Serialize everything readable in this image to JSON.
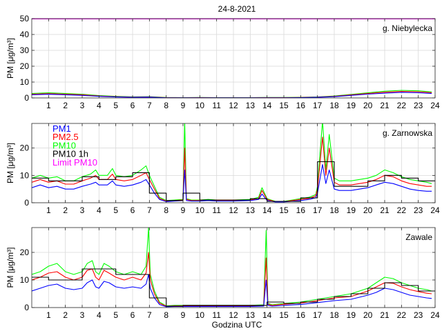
{
  "figure_title": "24-8-2021",
  "x_axis_label": "Godzina UTC",
  "colors": {
    "PM1": "#0000ff",
    "PM2.5": "#ff0000",
    "PM10": "#00ff00",
    "PM10 1h": "#000000",
    "Limit PM10": "#ff00ff",
    "grid": "#d9d9d9",
    "axis": "#262626"
  },
  "chart_data": [
    {
      "type": "line",
      "station": "g. Niebylecka",
      "ylabel": "PM [μg/m³]",
      "xlim": [
        0,
        24
      ],
      "ylim": [
        0,
        50
      ],
      "yticks": [
        0,
        10,
        20,
        30,
        40,
        50
      ],
      "xticks": [
        1,
        2,
        3,
        4,
        5,
        6,
        7,
        8,
        9,
        10,
        11,
        12,
        13,
        14,
        15,
        16,
        17,
        18,
        19,
        20,
        21,
        22,
        23,
        24
      ],
      "grid": true,
      "legend": null,
      "series": [
        {
          "name": "Limit PM10",
          "x": [
            0,
            24
          ],
          "values": [
            50,
            50
          ]
        },
        {
          "name": "PM10",
          "x": [
            0,
            1,
            2,
            3,
            4,
            5,
            6,
            7,
            8,
            9,
            10,
            11,
            12,
            13,
            14,
            15,
            16,
            17,
            18,
            19,
            20,
            21,
            22,
            23,
            23.8
          ],
          "values": [
            2.8,
            3.2,
            2.8,
            2.3,
            1.5,
            1.0,
            0.7,
            0.8,
            0.3,
            0.2,
            0.3,
            0.2,
            0.2,
            0.2,
            0.3,
            0.3,
            0.4,
            0.6,
            1.2,
            2.2,
            3.2,
            4.2,
            4.8,
            4.5,
            3.8
          ]
        },
        {
          "name": "PM2.5",
          "x": [
            0,
            1,
            2,
            3,
            4,
            5,
            6,
            7,
            8,
            9,
            10,
            11,
            12,
            13,
            14,
            15,
            16,
            17,
            18,
            19,
            20,
            21,
            22,
            23,
            23.8
          ],
          "values": [
            2.4,
            2.7,
            2.4,
            2.0,
            1.2,
            0.8,
            0.5,
            0.6,
            0.2,
            0.1,
            0.2,
            0.1,
            0.1,
            0.1,
            0.2,
            0.2,
            0.3,
            0.5,
            1.0,
            1.9,
            2.8,
            3.6,
            4.1,
            3.9,
            3.3
          ]
        },
        {
          "name": "PM1",
          "x": [
            0,
            1,
            2,
            3,
            4,
            5,
            6,
            7,
            8,
            9,
            10,
            11,
            12,
            13,
            14,
            15,
            16,
            17,
            18,
            19,
            20,
            21,
            22,
            23,
            23.8
          ],
          "values": [
            2.0,
            2.3,
            2.0,
            1.6,
            1.0,
            0.6,
            0.4,
            0.5,
            0.1,
            0.1,
            0.1,
            0.1,
            0.1,
            0.1,
            0.1,
            0.1,
            0.2,
            0.4,
            0.8,
            1.6,
            2.4,
            3.0,
            3.5,
            3.3,
            2.8
          ]
        }
      ]
    },
    {
      "type": "line",
      "station": "g. Zarnowska",
      "ylabel": "PM [μg/m³]",
      "xlim": [
        0,
        24
      ],
      "ylim": [
        0,
        29
      ],
      "yticks": [
        0,
        10,
        20
      ],
      "xticks": [
        1,
        2,
        3,
        4,
        5,
        6,
        7,
        8,
        9,
        10,
        11,
        12,
        13,
        14,
        15,
        16,
        17,
        18,
        19,
        20,
        21,
        22,
        23,
        24
      ],
      "grid": true,
      "legend": {
        "position": "top-left",
        "entries": [
          "PM1",
          "PM2.5",
          "PM10",
          "PM10 1h",
          "Limit PM10"
        ]
      },
      "series": [
        {
          "name": "PM10",
          "x": [
            0,
            0.5,
            1,
            1.5,
            2,
            2.5,
            3,
            3.5,
            3.8,
            4,
            4.5,
            4.8,
            5,
            5.5,
            6,
            6.5,
            6.8,
            7,
            7.3,
            7.6,
            8,
            8.5,
            9,
            9.1,
            9.2,
            9.5,
            10,
            10.5,
            11,
            12,
            13,
            13.5,
            13.7,
            14,
            14.5,
            15,
            16,
            16.5,
            16.9,
            17,
            17.3,
            17.5,
            17.7,
            18,
            18.3,
            18.6,
            19,
            19.5,
            20,
            20.5,
            21,
            21.5,
            22,
            22.5,
            23,
            23.5,
            23.8
          ],
          "values": [
            9,
            10,
            9,
            9.5,
            8,
            8,
            9.5,
            10.5,
            12,
            10,
            10,
            12.5,
            10,
            9.5,
            10,
            12,
            13.5,
            10,
            6,
            2,
            0.8,
            1,
            1.2,
            30,
            1.5,
            1,
            1,
            1.2,
            1,
            1,
            1.2,
            2,
            5.5,
            1.5,
            0.5,
            0.5,
            1.5,
            2,
            3,
            6,
            30,
            12,
            25,
            9,
            8,
            8,
            8,
            8.5,
            9,
            10,
            12,
            11,
            9.5,
            8.5,
            8,
            7.5,
            7
          ]
        },
        {
          "name": "PM2.5",
          "x": [
            0,
            0.5,
            1,
            1.5,
            2,
            2.5,
            3,
            3.5,
            3.8,
            4,
            4.5,
            4.8,
            5,
            5.5,
            6,
            6.5,
            6.8,
            7,
            7.3,
            7.6,
            8,
            8.5,
            9,
            9.1,
            9.2,
            9.5,
            10,
            10.5,
            11,
            12,
            13,
            13.5,
            13.7,
            14,
            14.5,
            15,
            16,
            16.5,
            16.9,
            17,
            17.3,
            17.5,
            17.7,
            18,
            18.3,
            18.6,
            19,
            19.5,
            20,
            20.5,
            21,
            21.5,
            22,
            22.5,
            23,
            23.5,
            23.8
          ],
          "values": [
            7.5,
            8.5,
            7.5,
            8,
            6.8,
            6.8,
            8,
            9,
            10,
            8.5,
            8.5,
            10.5,
            8.5,
            8,
            8.5,
            10,
            11,
            8.5,
            5,
            1.6,
            0.6,
            0.8,
            1,
            20,
            1.2,
            0.8,
            0.8,
            1,
            0.8,
            0.8,
            1,
            1.6,
            4.5,
            1.2,
            0.4,
            0.4,
            1.2,
            1.6,
            2.5,
            5,
            24,
            10,
            20,
            7.5,
            6.5,
            6.5,
            6.5,
            7,
            7.5,
            8.5,
            10,
            9.5,
            8,
            7,
            6.5,
            6,
            6
          ]
        },
        {
          "name": "PM1",
          "x": [
            0,
            0.5,
            1,
            1.5,
            2,
            2.5,
            3,
            3.5,
            3.8,
            4,
            4.5,
            4.8,
            5,
            5.5,
            6,
            6.5,
            6.8,
            7,
            7.3,
            7.6,
            8,
            8.5,
            9,
            9.1,
            9.2,
            9.5,
            10,
            10.5,
            11,
            12,
            13,
            13.5,
            13.7,
            14,
            14.5,
            15,
            16,
            16.5,
            16.9,
            17,
            17.3,
            17.5,
            17.7,
            18,
            18.3,
            18.6,
            19,
            19.5,
            20,
            20.5,
            21,
            21.5,
            22,
            22.5,
            23,
            23.5,
            23.8
          ],
          "values": [
            5.5,
            6.5,
            5.5,
            6,
            5,
            5,
            6,
            6.8,
            7.5,
            6.5,
            6.5,
            8,
            6.5,
            6,
            6.5,
            7.5,
            8.5,
            6.5,
            3.5,
            1.2,
            0.4,
            0.6,
            0.8,
            12,
            0.8,
            0.6,
            0.6,
            0.8,
            0.6,
            0.6,
            0.8,
            1.2,
            3.2,
            0.8,
            0.3,
            0.3,
            0.8,
            1.2,
            1.8,
            3.5,
            14,
            7,
            12,
            5,
            4.5,
            4.5,
            4.5,
            5,
            5.5,
            6.5,
            7.5,
            7,
            6,
            5,
            4.5,
            4.2,
            4.2
          ]
        },
        {
          "name": "PM10 1h",
          "x": [
            0,
            1,
            2,
            3,
            4,
            5,
            6,
            7,
            8,
            9,
            10,
            11,
            12,
            13,
            14,
            15,
            16,
            17,
            18,
            19,
            20,
            21,
            22,
            23,
            24
          ],
          "values": [
            9,
            8,
            8,
            9.5,
            8.5,
            9.5,
            11,
            3.5,
            0.8,
            3.5,
            1,
            1,
            1,
            1.5,
            0.5,
            0.5,
            1.8,
            15,
            6,
            6,
            8,
            10,
            9,
            8,
            8
          ]
        }
      ]
    },
    {
      "type": "line",
      "station": "Zawale",
      "ylabel": "PM [μg/m³]",
      "xlim": [
        0,
        24
      ],
      "ylim": [
        0,
        29
      ],
      "yticks": [
        0,
        10,
        20
      ],
      "xticks": [
        1,
        2,
        3,
        4,
        5,
        6,
        7,
        8,
        9,
        10,
        11,
        12,
        13,
        14,
        15,
        16,
        17,
        18,
        19,
        20,
        21,
        22,
        23,
        24
      ],
      "grid": true,
      "legend": null,
      "series": [
        {
          "name": "PM10",
          "x": [
            0,
            0.5,
            1,
            1.5,
            2,
            2.5,
            3,
            3.3,
            3.6,
            3.8,
            4,
            4.3,
            4.6,
            5,
            5.5,
            6,
            6.5,
            6.8,
            6.95,
            7.05,
            7.3,
            7.6,
            8,
            8.5,
            9,
            10,
            11,
            12,
            13,
            13.8,
            13.95,
            14.05,
            14.3,
            15,
            16,
            17,
            18,
            19,
            20,
            20.5,
            21,
            21.5,
            22,
            22.5,
            23,
            23.5,
            23.8
          ],
          "values": [
            12,
            13,
            15,
            16,
            13,
            12,
            13,
            16,
            17,
            13,
            12,
            16,
            15,
            13,
            12,
            13,
            12,
            15,
            29,
            12,
            6,
            2,
            0.6,
            0.8,
            0.8,
            0.8,
            0.8,
            0.8,
            0.8,
            1,
            28,
            1.5,
            1,
            1.5,
            2,
            3,
            4,
            5,
            7,
            9,
            11,
            10.5,
            9,
            8,
            7,
            6.5,
            6
          ]
        },
        {
          "name": "PM2.5",
          "x": [
            0,
            0.5,
            1,
            1.5,
            2,
            2.5,
            3,
            3.3,
            3.6,
            3.8,
            4,
            4.3,
            4.6,
            5,
            5.5,
            6,
            6.5,
            6.8,
            6.95,
            7.05,
            7.3,
            7.6,
            8,
            8.5,
            9,
            10,
            11,
            12,
            13,
            13.8,
            13.95,
            14.05,
            14.3,
            15,
            16,
            17,
            18,
            19,
            20,
            20.5,
            21,
            21.5,
            22,
            22.5,
            23,
            23.5,
            23.8
          ],
          "values": [
            10,
            11,
            12.5,
            13,
            11,
            10,
            11,
            13.5,
            14,
            11,
            10,
            13.5,
            12.5,
            11,
            10,
            11,
            10,
            12.5,
            20,
            10,
            5,
            1.6,
            0.5,
            0.6,
            0.6,
            0.6,
            0.6,
            0.6,
            0.6,
            0.8,
            18,
            1.2,
            0.8,
            1.2,
            1.6,
            2.5,
            3.5,
            4,
            6,
            7.5,
            9,
            8.8,
            7.5,
            6.5,
            5.8,
            5.2,
            5
          ]
        },
        {
          "name": "PM1",
          "x": [
            0,
            0.5,
            1,
            1.5,
            2,
            2.5,
            3,
            3.3,
            3.6,
            3.8,
            4,
            4.3,
            4.6,
            5,
            5.5,
            6,
            6.5,
            6.8,
            6.95,
            7.05,
            7.3,
            7.6,
            8,
            8.5,
            9,
            10,
            11,
            12,
            13,
            13.8,
            13.95,
            14.05,
            14.3,
            15,
            16,
            17,
            18,
            19,
            20,
            20.5,
            21,
            21.5,
            22,
            22.5,
            23,
            23.5,
            23.8
          ],
          "values": [
            6,
            7,
            8,
            8.5,
            7,
            6.5,
            7,
            9,
            10,
            7.5,
            7,
            9.5,
            9,
            7.5,
            7,
            7.5,
            7,
            8.5,
            12,
            7,
            3.5,
            1.1,
            0.3,
            0.4,
            0.4,
            0.4,
            0.4,
            0.4,
            0.4,
            0.5,
            10,
            0.8,
            0.5,
            0.8,
            1.1,
            1.8,
            2.5,
            3,
            4.5,
            5.5,
            7,
            6.5,
            5.5,
            4.5,
            4,
            3.5,
            3.3
          ]
        },
        {
          "name": "PM10 1h",
          "x": [
            0,
            1,
            2,
            3,
            4,
            5,
            6,
            7,
            8,
            9,
            10,
            11,
            12,
            13,
            14,
            15,
            16,
            17,
            18,
            19,
            20,
            21,
            22,
            23,
            24
          ],
          "values": [
            11,
            10,
            10,
            14,
            14,
            12,
            12,
            3.5,
            0.5,
            0.8,
            0.8,
            0.8,
            0.8,
            0.8,
            2,
            1.5,
            2,
            3,
            4,
            5,
            7,
            9,
            8,
            6,
            6
          ]
        }
      ]
    }
  ]
}
